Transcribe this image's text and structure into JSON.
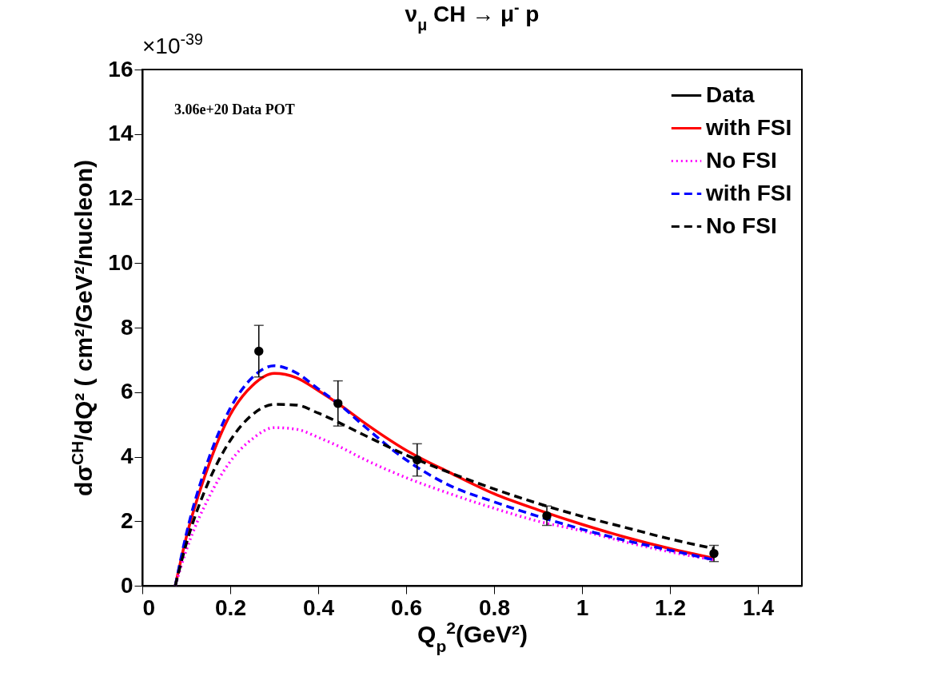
{
  "chart_data": {
    "type": "line",
    "title": "ν$_{μ}$ CH → μ$^{-}$ p",
    "xlabel": "Q$_{p}$$^{2}$(GeV²)",
    "ylabel": "dσ$^{CH}$/dQ² ( cm²/GeV²/nucleon)",
    "annotations": [
      "×10$^{-39}$",
      "3.06e+20 Data POT"
    ],
    "xlim": [
      0,
      1.5
    ],
    "xticks": [
      0,
      0.2,
      0.4,
      0.6,
      0.8,
      1,
      1.2,
      1.4
    ],
    "ylim": [
      0,
      16
    ],
    "yticks": [
      0,
      2,
      4,
      6,
      8,
      10,
      12,
      14,
      16
    ],
    "grid": false,
    "legend": "top right",
    "series": [
      {
        "name": "Data",
        "type": "scatter",
        "marker": "circle",
        "color": "#000000",
        "x": [
          0.265,
          0.445,
          0.625,
          0.92,
          1.3
        ],
        "values": [
          7.27,
          5.65,
          3.9,
          2.17,
          1.0
        ],
        "errors": [
          0.8,
          0.7,
          0.5,
          0.3,
          0.25
        ]
      },
      {
        "name": "with FSI",
        "line_style": "solid",
        "color": "#ff0000",
        "x": [
          0.075,
          0.1,
          0.15,
          0.2,
          0.25,
          0.3,
          0.35,
          0.4,
          0.45,
          0.5,
          0.6,
          0.7,
          0.8,
          0.9,
          1.0,
          1.1,
          1.2,
          1.3
        ],
        "values": [
          0,
          1.5,
          3.7,
          5.3,
          6.2,
          6.58,
          6.45,
          6.05,
          5.6,
          5.1,
          4.2,
          3.5,
          2.85,
          2.35,
          1.9,
          1.5,
          1.15,
          0.85
        ]
      },
      {
        "name": "No FSI",
        "line_style": "dotted",
        "color": "#ff00ff",
        "x": [
          0.075,
          0.1,
          0.15,
          0.2,
          0.25,
          0.3,
          0.35,
          0.4,
          0.45,
          0.5,
          0.6,
          0.7,
          0.8,
          0.9,
          1.0,
          1.1,
          1.2,
          1.3
        ],
        "values": [
          0,
          1.1,
          2.7,
          3.85,
          4.55,
          4.9,
          4.85,
          4.6,
          4.3,
          3.95,
          3.35,
          2.85,
          2.4,
          2.0,
          1.7,
          1.35,
          1.05,
          0.8
        ]
      },
      {
        "name": "with FSI",
        "line_style": "dashed",
        "color": "#0000ff",
        "x": [
          0.075,
          0.1,
          0.15,
          0.2,
          0.25,
          0.3,
          0.35,
          0.4,
          0.45,
          0.5,
          0.6,
          0.7,
          0.8,
          0.9,
          1.0,
          1.1,
          1.2,
          1.3
        ],
        "values": [
          0,
          1.6,
          3.9,
          5.5,
          6.45,
          6.82,
          6.6,
          6.1,
          5.6,
          5.0,
          3.9,
          3.1,
          2.6,
          2.15,
          1.75,
          1.4,
          1.1,
          0.8
        ]
      },
      {
        "name": "No FSI",
        "line_style": "dashed",
        "color": "#000000",
        "x": [
          0.075,
          0.1,
          0.15,
          0.2,
          0.25,
          0.3,
          0.35,
          0.4,
          0.5,
          0.6,
          0.7,
          0.8,
          0.9,
          1.0,
          1.1,
          1.2,
          1.3
        ],
        "values": [
          0,
          1.3,
          3.2,
          4.5,
          5.3,
          5.62,
          5.6,
          5.35,
          4.7,
          4.05,
          3.5,
          3.0,
          2.55,
          2.15,
          1.8,
          1.45,
          1.15
        ]
      }
    ]
  }
}
